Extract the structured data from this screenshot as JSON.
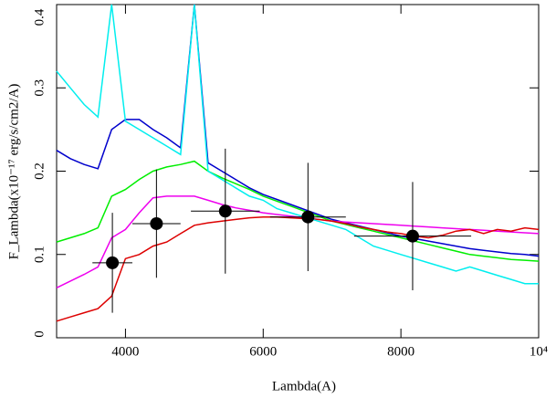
{
  "chart_data": {
    "type": "line",
    "xlabel": "Lambda(A)",
    "ylabel": "F_Lambda(x10⁻¹⁷ erg/s/cm2/A)",
    "xlim": [
      3000,
      10000
    ],
    "ylim": [
      0,
      0.4
    ],
    "xticks": [
      4000,
      6000,
      8000,
      {
        "value": 10000,
        "label": "10⁴"
      }
    ],
    "yticks": [
      0,
      0.1,
      0.2,
      0.3,
      0.4
    ],
    "x": [
      3000,
      3200,
      3400,
      3600,
      3800,
      4000,
      4200,
      4400,
      4600,
      4800,
      5000,
      5200,
      5400,
      5600,
      5800,
      6000,
      6200,
      6400,
      6600,
      6800,
      7000,
      7200,
      7400,
      7600,
      7800,
      8000,
      8200,
      8400,
      8600,
      8800,
      9000,
      9200,
      9400,
      9600,
      9800,
      10000
    ],
    "series": [
      {
        "color": "#0000cc",
        "values": [
          0.225,
          0.215,
          0.208,
          0.203,
          0.25,
          0.262,
          0.262,
          0.25,
          0.24,
          0.228,
          0.4,
          0.21,
          0.2,
          0.19,
          0.18,
          0.172,
          0.166,
          0.16,
          0.154,
          0.148,
          0.142,
          0.138,
          0.134,
          0.13,
          0.126,
          0.122,
          0.119,
          0.116,
          0.113,
          0.11,
          0.107,
          0.105,
          0.103,
          0.101,
          0.1,
          0.098
        ]
      },
      {
        "color": "#00ee00",
        "values": [
          0.115,
          0.12,
          0.125,
          0.132,
          0.17,
          0.178,
          0.19,
          0.2,
          0.205,
          0.208,
          0.212,
          0.2,
          0.192,
          0.185,
          0.178,
          0.17,
          0.164,
          0.158,
          0.152,
          0.146,
          0.14,
          0.136,
          0.132,
          0.128,
          0.124,
          0.12,
          0.116,
          0.112,
          0.108,
          0.104,
          0.1,
          0.098,
          0.096,
          0.094,
          0.093,
          0.092
        ]
      },
      {
        "color": "#ee00ee",
        "values": [
          0.06,
          0.068,
          0.076,
          0.085,
          0.12,
          0.13,
          0.15,
          0.168,
          0.17,
          0.17,
          0.17,
          0.165,
          0.16,
          0.156,
          0.153,
          0.15,
          0.148,
          0.146,
          0.144,
          0.142,
          0.14,
          0.139,
          0.138,
          0.137,
          0.136,
          0.135,
          0.134,
          0.133,
          0.132,
          0.131,
          0.13,
          0.129,
          0.128,
          0.127,
          0.126,
          0.125
        ]
      },
      {
        "color": "#dd0000",
        "values": [
          0.02,
          0.025,
          0.03,
          0.035,
          0.05,
          0.095,
          0.1,
          0.11,
          0.115,
          0.125,
          0.135,
          0.138,
          0.14,
          0.142,
          0.144,
          0.145,
          0.145,
          0.144,
          0.143,
          0.142,
          0.14,
          0.137,
          0.133,
          0.13,
          0.127,
          0.125,
          0.122,
          0.12,
          0.123,
          0.128,
          0.13,
          0.125,
          0.13,
          0.128,
          0.132,
          0.13
        ]
      },
      {
        "color": "#00eeee",
        "values": [
          0.32,
          0.3,
          0.28,
          0.265,
          0.4,
          0.26,
          0.25,
          0.24,
          0.23,
          0.22,
          0.4,
          0.2,
          0.19,
          0.18,
          0.17,
          0.165,
          0.155,
          0.15,
          0.145,
          0.14,
          0.135,
          0.13,
          0.12,
          0.11,
          0.105,
          0.1,
          0.095,
          0.09,
          0.085,
          0.08,
          0.085,
          0.08,
          0.075,
          0.07,
          0.065,
          0.065
        ]
      }
    ],
    "points": {
      "color": "#000000",
      "x": [
        3810,
        4450,
        5450,
        6650,
        8170
      ],
      "values": [
        0.09,
        0.137,
        0.152,
        0.145,
        0.122
      ],
      "xerr": [
        290,
        350,
        500,
        550,
        850
      ],
      "yerr": [
        0.06,
        0.065,
        0.075,
        0.065,
        0.065
      ]
    }
  }
}
